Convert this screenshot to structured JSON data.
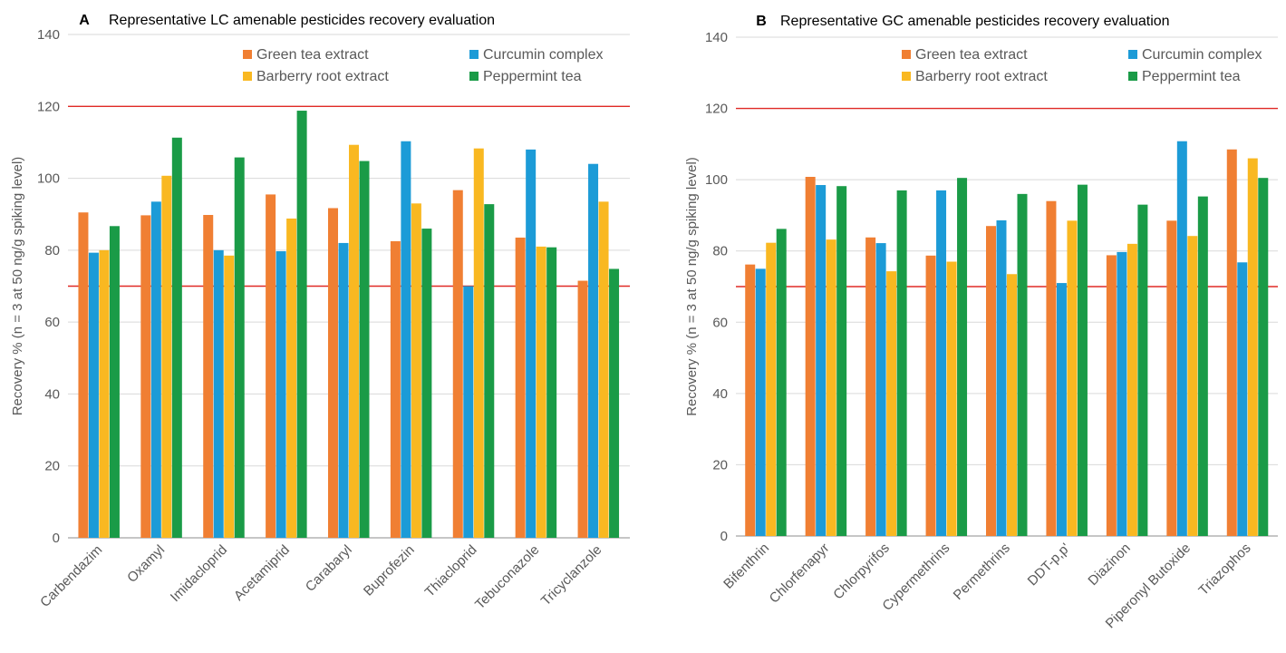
{
  "colors": {
    "Green tea extract": "#f07f33",
    "Curcumin complex": "#1c9bd7",
    "Barberry root extract": "#f9b821",
    "Peppermint tea": "#1a9b47",
    "threshold_line": "#e02a26",
    "grid": "#d9d9d9",
    "axis": "#8c8c8c"
  },
  "chart_data": [
    {
      "type": "bar",
      "panel": "A",
      "title": "Representative LC amenable pesticides recovery evaluation",
      "xlabel": "",
      "ylabel": "Recovery % (n = 3 at 50 ng/g spiking level)",
      "ylim": [
        0,
        140
      ],
      "yticks": [
        0,
        20,
        40,
        60,
        80,
        100,
        120,
        140
      ],
      "grid": true,
      "legend_position": "top-right",
      "reference_lines": [
        70,
        120
      ],
      "categories": [
        "Carbendazim",
        "Oxamyl",
        "Imidacloprid",
        "Acetamiprid",
        "Carabaryl",
        "Buprofezin",
        "Thiacloprid",
        "Tebuconazole",
        "Tricyclanzole"
      ],
      "series": [
        {
          "name": "Green tea extract",
          "values": [
            90.5,
            89.7,
            89.8,
            95.5,
            91.7,
            82.5,
            96.7,
            83.5,
            71.5
          ]
        },
        {
          "name": "Curcumin complex",
          "values": [
            79.3,
            93.5,
            80.0,
            79.7,
            82.0,
            110.3,
            70.0,
            108.0,
            104.0
          ]
        },
        {
          "name": "Barberry root extract",
          "values": [
            80.0,
            100.7,
            78.5,
            88.8,
            109.3,
            93.0,
            108.3,
            81.0,
            93.5
          ]
        },
        {
          "name": "Peppermint tea",
          "values": [
            86.7,
            111.3,
            105.8,
            118.8,
            104.8,
            86.0,
            92.8,
            80.8,
            74.8
          ]
        }
      ]
    },
    {
      "type": "bar",
      "panel": "B",
      "title": "Representative GC amenable pesticides recovery evaluation",
      "xlabel": "",
      "ylabel": "Recovery % (n = 3 at 50 ng/g spiking level)",
      "ylim": [
        0,
        140
      ],
      "yticks": [
        0,
        20,
        40,
        60,
        80,
        100,
        120,
        140
      ],
      "grid": true,
      "legend_position": "top-right",
      "reference_lines": [
        70,
        120
      ],
      "categories": [
        "Bifenthrin",
        "Chlorfenapyr",
        "Chlorpyrifos",
        "Cypermethrins",
        "Permethrins",
        "DDT-p,p'",
        "Diazinon",
        "Piperonyl Butoxide",
        "Triazophos"
      ],
      "series": [
        {
          "name": "Green tea extract",
          "values": [
            76.2,
            100.8,
            83.8,
            78.7,
            87.0,
            94.0,
            78.8,
            88.5,
            108.5
          ]
        },
        {
          "name": "Curcumin complex",
          "values": [
            75.0,
            98.5,
            82.2,
            97.0,
            88.6,
            71.0,
            79.7,
            110.8,
            76.8
          ]
        },
        {
          "name": "Barberry root extract",
          "values": [
            82.3,
            83.2,
            74.3,
            77.0,
            73.5,
            88.5,
            82.0,
            84.2,
            106.0
          ]
        },
        {
          "name": "Peppermint tea",
          "values": [
            86.2,
            98.2,
            97.0,
            100.5,
            96.0,
            98.6,
            93.0,
            95.3,
            100.5
          ]
        }
      ]
    }
  ]
}
